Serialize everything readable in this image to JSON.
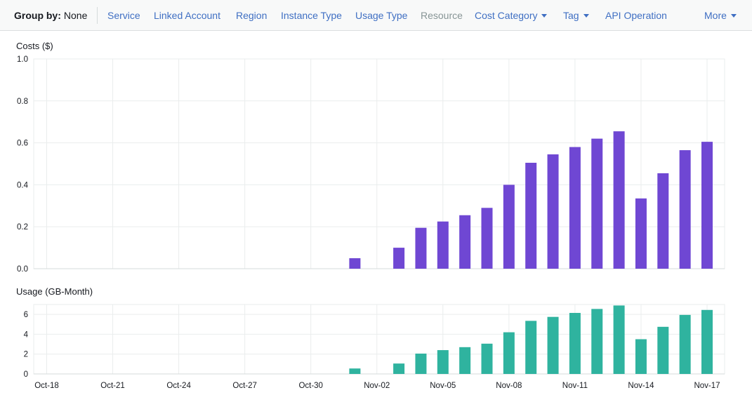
{
  "toolbar": {
    "group_by_label": "Group by:",
    "group_by_value": "None",
    "items": [
      {
        "label": "Service",
        "dropdown": false,
        "enabled": true
      },
      {
        "label": "Linked Account",
        "dropdown": false,
        "enabled": true
      },
      {
        "label": "Region",
        "dropdown": false,
        "enabled": true
      },
      {
        "label": "Instance Type",
        "dropdown": false,
        "enabled": true
      },
      {
        "label": "Usage Type",
        "dropdown": false,
        "enabled": true
      },
      {
        "label": "Resource",
        "dropdown": false,
        "enabled": false
      },
      {
        "label": "Cost Category",
        "dropdown": true,
        "enabled": true
      },
      {
        "label": "Tag",
        "dropdown": true,
        "enabled": true
      },
      {
        "label": "API Operation",
        "dropdown": false,
        "enabled": true
      },
      {
        "label": "More",
        "dropdown": true,
        "enabled": true
      }
    ],
    "link_color": "#3f6fc3",
    "disabled_color": "#879596"
  },
  "chart_data": [
    {
      "type": "bar",
      "title": "Costs ($)",
      "color": "#6f47d3",
      "ylim": [
        0,
        1.0
      ],
      "yticks": [
        "0.0",
        "0.2",
        "0.4",
        "0.6",
        "0.8",
        "1.0"
      ],
      "grid": true,
      "categories": [
        "Nov-01",
        "Nov-03",
        "Nov-04",
        "Nov-05",
        "Nov-06",
        "Nov-07",
        "Nov-08",
        "Nov-09",
        "Nov-10",
        "Nov-11",
        "Nov-12",
        "Nov-13",
        "Nov-14",
        "Nov-15",
        "Nov-16",
        "Nov-17"
      ],
      "values": [
        0.05,
        0.1,
        0.195,
        0.225,
        0.255,
        0.29,
        0.4,
        0.505,
        0.545,
        0.58,
        0.62,
        0.655,
        0.335,
        0.455,
        0.565,
        0.605
      ]
    },
    {
      "type": "bar",
      "title": "Usage (GB-Month)",
      "color": "#2fb39f",
      "ylim": [
        0,
        7
      ],
      "yticks": [
        "0",
        "2",
        "4",
        "6"
      ],
      "grid": true,
      "xticks": [
        "Oct-18",
        "Oct-21",
        "Oct-24",
        "Oct-27",
        "Oct-30",
        "Nov-02",
        "Nov-05",
        "Nov-08",
        "Nov-11",
        "Nov-14",
        "Nov-17"
      ],
      "categories": [
        "Nov-01",
        "Nov-03",
        "Nov-04",
        "Nov-05",
        "Nov-06",
        "Nov-07",
        "Nov-08",
        "Nov-09",
        "Nov-10",
        "Nov-11",
        "Nov-12",
        "Nov-13",
        "Nov-14",
        "Nov-15",
        "Nov-16",
        "Nov-17"
      ],
      "values": [
        0.55,
        1.05,
        2.05,
        2.4,
        2.7,
        3.05,
        4.2,
        5.35,
        5.75,
        6.15,
        6.55,
        6.9,
        3.5,
        4.75,
        5.95,
        6.45
      ]
    }
  ]
}
